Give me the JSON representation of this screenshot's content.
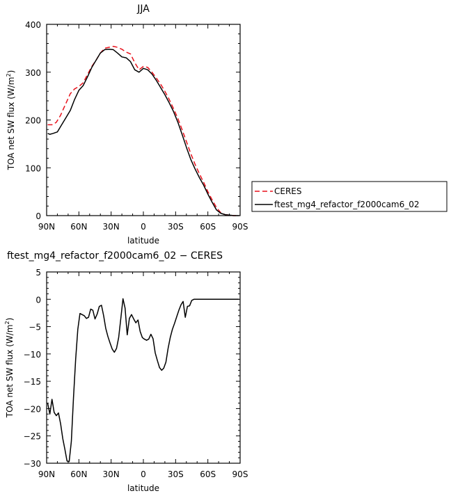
{
  "chart_data": [
    {
      "type": "line",
      "title": "JJA",
      "xlabel": "latitude",
      "ylabel": "TOA net SW flux (W/m²)",
      "ylabel_base": "TOA net SW flux (W/m",
      "ylabel_sup": "2",
      "ylabel_close": ")",
      "xlim": [
        90,
        -90
      ],
      "ylim": [
        0,
        400
      ],
      "x_ticks": [
        90,
        60,
        30,
        0,
        -30,
        -60,
        -90
      ],
      "x_tick_labels": [
        "90N",
        "60N",
        "30N",
        "0",
        "30S",
        "60S",
        "90S"
      ],
      "y_ticks": [
        0,
        100,
        200,
        300,
        400
      ],
      "y_tick_labels": [
        "0",
        "100",
        "200",
        "300",
        "400"
      ],
      "legend_position": "right",
      "series": [
        {
          "name": "CERES",
          "color": "#e8111b",
          "dash": "dashed",
          "points": [
            [
              89,
              190
            ],
            [
              85,
              190
            ],
            [
              81,
              195
            ],
            [
              77,
              210
            ],
            [
              72,
              235
            ],
            [
              68,
              255
            ],
            [
              64,
              265
            ],
            [
              60,
              270
            ],
            [
              56,
              278
            ],
            [
              52,
              295
            ],
            [
              48,
              312
            ],
            [
              44,
              325
            ],
            [
              40,
              340
            ],
            [
              36,
              350
            ],
            [
              32,
              352
            ],
            [
              28,
              354
            ],
            [
              24,
              352
            ],
            [
              20,
              348
            ],
            [
              16,
              342
            ],
            [
              12,
              338
            ],
            [
              8,
              320
            ],
            [
              4,
              305
            ],
            [
              0,
              312
            ],
            [
              -4,
              310
            ],
            [
              -8,
              300
            ],
            [
              -12,
              288
            ],
            [
              -16,
              275
            ],
            [
              -20,
              260
            ],
            [
              -24,
              243
            ],
            [
              -28,
              224
            ],
            [
              -32,
              204
            ],
            [
              -36,
              180
            ],
            [
              -40,
              155
            ],
            [
              -44,
              130
            ],
            [
              -48,
              108
            ],
            [
              -52,
              88
            ],
            [
              -56,
              70
            ],
            [
              -60,
              50
            ],
            [
              -64,
              33
            ],
            [
              -68,
              17
            ],
            [
              -72,
              6
            ],
            [
              -76,
              2
            ],
            [
              -80,
              1
            ],
            [
              -84,
              0
            ],
            [
              -89,
              0
            ]
          ]
        },
        {
          "name": "ftest_mg4_refactor_f2000cam6_02",
          "color": "#000000",
          "dash": "solid",
          "points": [
            [
              89,
              172
            ],
            [
              87,
              170
            ],
            [
              84,
              172
            ],
            [
              80,
              175
            ],
            [
              76,
              190
            ],
            [
              72,
              205
            ],
            [
              68,
              220
            ],
            [
              64,
              243
            ],
            [
              60,
              262
            ],
            [
              56,
              272
            ],
            [
              52,
              290
            ],
            [
              48,
              310
            ],
            [
              44,
              325
            ],
            [
              40,
              340
            ],
            [
              36,
              347
            ],
            [
              32,
              348
            ],
            [
              28,
              347
            ],
            [
              24,
              340
            ],
            [
              20,
              332
            ],
            [
              16,
              330
            ],
            [
              12,
              322
            ],
            [
              8,
              305
            ],
            [
              4,
              300
            ],
            [
              0,
              308
            ],
            [
              -4,
              305
            ],
            [
              -8,
              296
            ],
            [
              -12,
              283
            ],
            [
              -16,
              268
            ],
            [
              -20,
              253
            ],
            [
              -24,
              236
            ],
            [
              -28,
              218
            ],
            [
              -32,
              196
            ],
            [
              -36,
              170
            ],
            [
              -40,
              143
            ],
            [
              -44,
              118
            ],
            [
              -48,
              98
            ],
            [
              -52,
              80
            ],
            [
              -56,
              64
            ],
            [
              -60,
              45
            ],
            [
              -64,
              28
            ],
            [
              -68,
              12
            ],
            [
              -72,
              5
            ],
            [
              -76,
              2
            ],
            [
              -80,
              1
            ],
            [
              -84,
              0
            ],
            [
              -89,
              0
            ]
          ]
        }
      ]
    },
    {
      "type": "line",
      "title": "ftest_mg4_refactor_f2000cam6_02 − CERES",
      "xlabel": "latitude",
      "ylabel": "TOA net SW flux (W/m²)",
      "ylabel_base": "TOA net SW flux (W/m",
      "ylabel_sup": "2",
      "ylabel_close": ")",
      "xlim": [
        90,
        -90
      ],
      "ylim": [
        -30,
        5
      ],
      "x_ticks": [
        90,
        60,
        30,
        0,
        -30,
        -60,
        -90
      ],
      "x_tick_labels": [
        "90N",
        "60N",
        "30N",
        "0",
        "30S",
        "60S",
        "90S"
      ],
      "y_ticks": [
        -30,
        -25,
        -20,
        -15,
        -10,
        -5,
        0,
        5
      ],
      "y_tick_labels": [
        "−30",
        "−25",
        "−20",
        "−15",
        "−10",
        "−5",
        "0",
        "5"
      ],
      "series": [
        {
          "color": "#000000",
          "dash": "solid",
          "points": [
            [
              89,
              -19
            ],
            [
              87,
              -21
            ],
            [
              85,
              -18.3
            ],
            [
              83,
              -20.7
            ],
            [
              81,
              -21.3
            ],
            [
              79,
              -20.8
            ],
            [
              77,
              -22.8
            ],
            [
              75,
              -25.5
            ],
            [
              73,
              -27.5
            ],
            [
              71,
              -29.6
            ],
            [
              69,
              -29.7
            ],
            [
              67,
              -26
            ],
            [
              65,
              -18
            ],
            [
              63,
              -11
            ],
            [
              61,
              -5.5
            ],
            [
              59,
              -2.6
            ],
            [
              57,
              -2.8
            ],
            [
              55,
              -3
            ],
            [
              53,
              -3.5
            ],
            [
              51,
              -3.3
            ],
            [
              49,
              -1.8
            ],
            [
              47,
              -2
            ],
            [
              45,
              -3.6
            ],
            [
              43,
              -2.7
            ],
            [
              41,
              -1.3
            ],
            [
              39,
              -1.1
            ],
            [
              37,
              -3
            ],
            [
              35,
              -5.3
            ],
            [
              33,
              -6.8
            ],
            [
              31,
              -8
            ],
            [
              29,
              -9.1
            ],
            [
              27,
              -9.7
            ],
            [
              25,
              -9
            ],
            [
              23,
              -7
            ],
            [
              21,
              -3.5
            ],
            [
              19,
              0.1
            ],
            [
              17,
              -1.6
            ],
            [
              15,
              -6.5
            ],
            [
              13,
              -3.5
            ],
            [
              11,
              -2.8
            ],
            [
              9,
              -3.6
            ],
            [
              7,
              -4.3
            ],
            [
              5,
              -3.8
            ],
            [
              3,
              -5.9
            ],
            [
              1,
              -7
            ],
            [
              -1,
              -7.3
            ],
            [
              -3,
              -7.5
            ],
            [
              -5,
              -7.3
            ],
            [
              -7,
              -6.4
            ],
            [
              -9,
              -7.2
            ],
            [
              -11,
              -9.8
            ],
            [
              -13,
              -11.2
            ],
            [
              -15,
              -12.5
            ],
            [
              -17,
              -13
            ],
            [
              -19,
              -12.6
            ],
            [
              -21,
              -11.5
            ],
            [
              -23,
              -9
            ],
            [
              -25,
              -7
            ],
            [
              -27,
              -5.5
            ],
            [
              -29,
              -4.4
            ],
            [
              -31,
              -3.2
            ],
            [
              -33,
              -2
            ],
            [
              -35,
              -1
            ],
            [
              -37,
              -0.4
            ],
            [
              -39,
              -3.3
            ],
            [
              -41,
              -1.3
            ],
            [
              -43,
              -1.2
            ],
            [
              -45,
              -0.2
            ],
            [
              -47,
              0
            ],
            [
              -55,
              0
            ],
            [
              -65,
              0
            ],
            [
              -75,
              0
            ],
            [
              -89,
              0
            ]
          ]
        }
      ]
    }
  ]
}
